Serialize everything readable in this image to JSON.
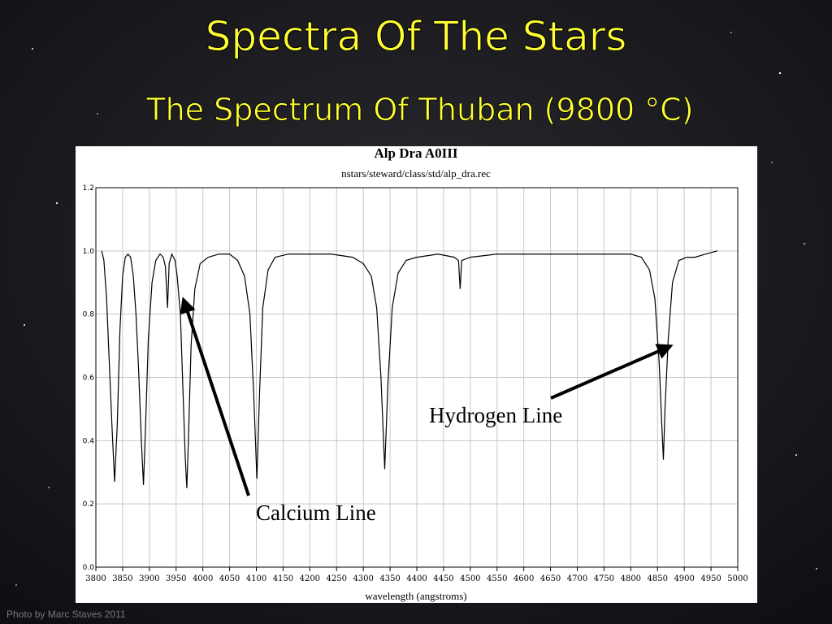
{
  "slide": {
    "title": "Spectra Of The Stars",
    "subtitle": "The Spectrum Of Thuban (9800 °C)",
    "credit": "Photo by Marc Staves 2011"
  },
  "chart_data": {
    "type": "line",
    "title": "Alp Dra A0III",
    "subtitle": "nstars/steward/class/std/alp_dra.rec",
    "xlabel": "wavelength (angstroms)",
    "grid": true,
    "xlim": [
      3800,
      5000
    ],
    "xticks": [
      3800,
      3850,
      3900,
      3950,
      4000,
      4050,
      4100,
      4150,
      4200,
      4250,
      4300,
      4350,
      4400,
      4450,
      4500,
      4550,
      4600,
      4650,
      4700,
      4750,
      4800,
      4850,
      4900,
      4950,
      5000
    ],
    "ylim": [
      0,
      1.2
    ],
    "yticks": [
      {
        "value": 0,
        "label": "0.0"
      },
      0.2,
      0.4,
      0.6,
      0.8,
      {
        "value": 1,
        "label": "1.0"
      },
      1.2
    ],
    "annotations": [
      "Hydrogen Line",
      "Calcium Line"
    ],
    "series": [
      {
        "color": "#000000",
        "x": [
          3811,
          3815,
          3820,
          3825,
          3830,
          3835,
          3840,
          3845,
          3850,
          3855,
          3860,
          3865,
          3870,
          3875,
          3880,
          3885,
          3889,
          3893,
          3898,
          3905,
          3912,
          3920,
          3926,
          3930,
          3934,
          3937,
          3942,
          3948,
          3952,
          3958,
          3963,
          3967,
          3970,
          3973,
          3978,
          3985,
          3995,
          4010,
          4030,
          4050,
          4065,
          4078,
          4088,
          4095,
          4101,
          4106,
          4112,
          4122,
          4135,
          4160,
          4200,
          4240,
          4280,
          4300,
          4315,
          4325,
          4333,
          4340,
          4346,
          4354,
          4365,
          4380,
          4400,
          4440,
          4470,
          4478,
          4481,
          4484,
          4500,
          4550,
          4600,
          4650,
          4700,
          4750,
          4800,
          4820,
          4835,
          4845,
          4853,
          4858,
          4861,
          4864,
          4870,
          4878,
          4890,
          4905,
          4920,
          4940,
          4962
        ],
        "values": [
          1.0,
          0.97,
          0.85,
          0.65,
          0.45,
          0.27,
          0.45,
          0.75,
          0.92,
          0.98,
          0.99,
          0.98,
          0.92,
          0.8,
          0.62,
          0.4,
          0.26,
          0.45,
          0.72,
          0.9,
          0.97,
          0.99,
          0.98,
          0.95,
          0.82,
          0.96,
          0.99,
          0.97,
          0.92,
          0.8,
          0.55,
          0.35,
          0.25,
          0.4,
          0.7,
          0.88,
          0.96,
          0.98,
          0.99,
          0.99,
          0.97,
          0.92,
          0.8,
          0.55,
          0.28,
          0.55,
          0.82,
          0.94,
          0.98,
          0.99,
          0.99,
          0.99,
          0.98,
          0.96,
          0.92,
          0.82,
          0.6,
          0.31,
          0.58,
          0.82,
          0.93,
          0.97,
          0.98,
          0.99,
          0.98,
          0.97,
          0.88,
          0.97,
          0.98,
          0.99,
          0.99,
          0.99,
          0.99,
          0.99,
          0.99,
          0.98,
          0.94,
          0.85,
          0.65,
          0.45,
          0.34,
          0.5,
          0.72,
          0.9,
          0.97,
          0.98,
          0.98,
          0.99,
          1.0
        ]
      }
    ]
  }
}
